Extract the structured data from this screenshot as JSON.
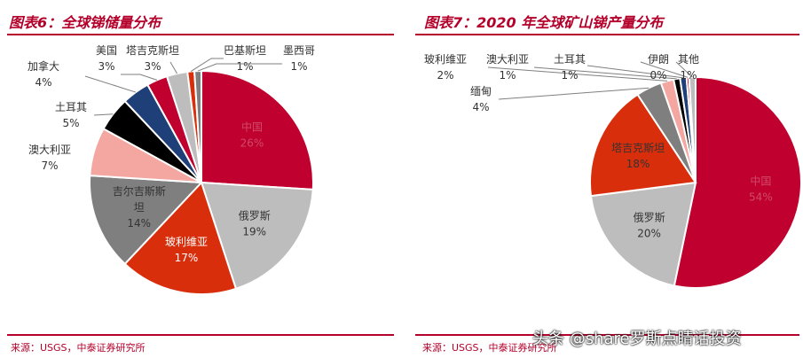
{
  "colors": {
    "accent": "#b4002a"
  },
  "left": {
    "title": "图表6：全球锑储量分布",
    "source": "来源：USGS，中泰证券研究所"
  },
  "right": {
    "title": "图表7：2020 年全球矿山锑产量分布",
    "source": "来源：USGS，中泰证券研究所"
  },
  "watermark": "头条 @share罗斯点睛话投资",
  "chart_data": [
    {
      "type": "pie",
      "title": "图表6：全球锑储量分布",
      "start": "12 o'clock, clockwise",
      "slices": [
        {
          "label": "中国",
          "pct": "26%",
          "value": 26,
          "color": "#c0002f",
          "textColor": "#d04a6a"
        },
        {
          "label": "俄罗斯",
          "pct": "19%",
          "value": 19,
          "color": "#bdbdbd",
          "textColor": "#333333"
        },
        {
          "label": "玻利维亚",
          "pct": "17%",
          "value": 17,
          "color": "#d92e0c",
          "textColor": "#ffffff"
        },
        {
          "label": "吉尔吉斯斯坦",
          "pct": "14%",
          "value": 14,
          "color": "#7f7f7f",
          "textColor": "#333333"
        },
        {
          "label": "澳大利亚",
          "pct": "7%",
          "value": 7,
          "color": "#f4a7a1",
          "textColor": "#333333"
        },
        {
          "label": "土耳其",
          "pct": "5%",
          "value": 5,
          "color": "#000000",
          "textColor": "#333333"
        },
        {
          "label": "加拿大",
          "pct": "4%",
          "value": 4,
          "color": "#1f3f78",
          "textColor": "#333333"
        },
        {
          "label": "美国",
          "pct": "3%",
          "value": 3,
          "color": "#c0002f",
          "textColor": "#333333"
        },
        {
          "label": "塔吉克斯坦",
          "pct": "3%",
          "value": 3,
          "color": "#bdbdbd",
          "textColor": "#333333"
        },
        {
          "label": "巴基斯坦",
          "pct": "1%",
          "value": 1,
          "color": "#d92e0c",
          "textColor": "#333333"
        },
        {
          "label": "墨西哥",
          "pct": "1%",
          "value": 1,
          "color": "#7f7f7f",
          "textColor": "#333333"
        }
      ]
    },
    {
      "type": "pie",
      "title": "图表7：2020 年全球矿山锑产量分布",
      "start": "12 o'clock, clockwise",
      "slices": [
        {
          "label": "中国",
          "pct": "54%",
          "value": 54,
          "color": "#c0002f",
          "textColor": "#d04a6a"
        },
        {
          "label": "俄罗斯",
          "pct": "20%",
          "value": 20,
          "color": "#bdbdbd",
          "textColor": "#333333"
        },
        {
          "label": "塔吉克斯坦",
          "pct": "18%",
          "value": 18,
          "color": "#d92e0c",
          "textColor": "#333333"
        },
        {
          "label": "缅甸",
          "pct": "4%",
          "value": 4,
          "color": "#7f7f7f",
          "textColor": "#333333"
        },
        {
          "label": "玻利维亚",
          "pct": "2%",
          "value": 2,
          "color": "#f4a7a1",
          "textColor": "#333333"
        },
        {
          "label": "澳大利亚",
          "pct": "1%",
          "value": 1,
          "color": "#000000",
          "textColor": "#333333"
        },
        {
          "label": "土耳其",
          "pct": "1%",
          "value": 1,
          "color": "#1f3f78",
          "textColor": "#333333"
        },
        {
          "label": "伊朗",
          "pct": "0%",
          "value": 0.4,
          "color": "#c0002f",
          "textColor": "#333333"
        },
        {
          "label": "其他",
          "pct": "1%",
          "value": 1,
          "color": "#bdbdbd",
          "textColor": "#333333"
        }
      ]
    }
  ]
}
